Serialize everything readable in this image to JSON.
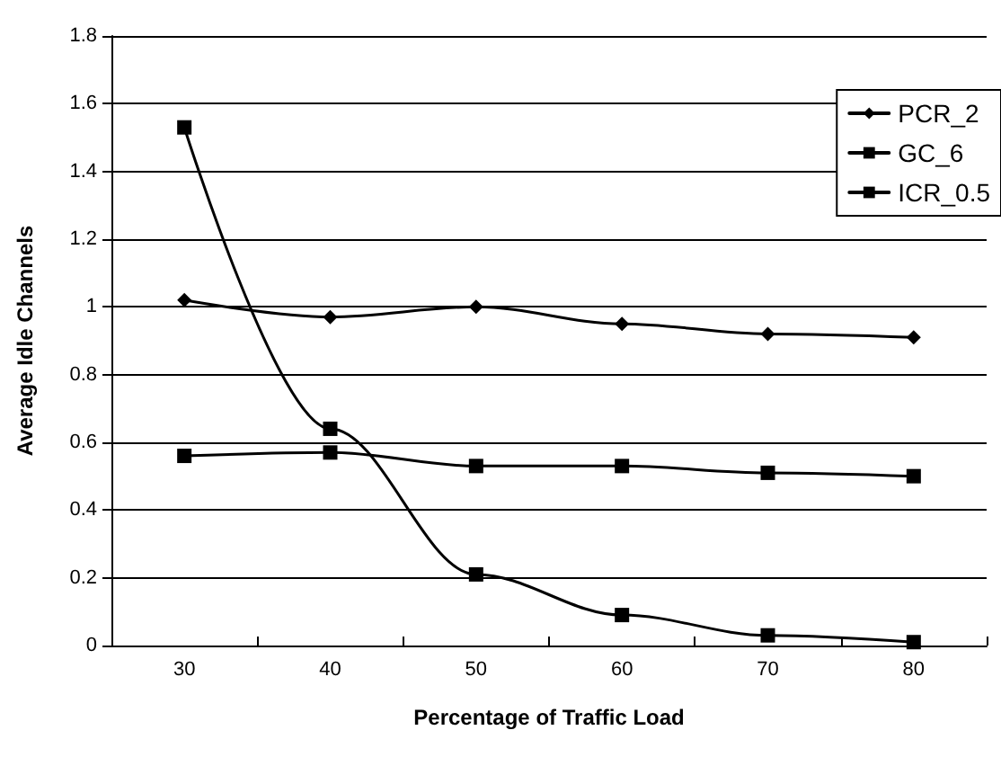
{
  "chart_data": {
    "type": "line",
    "xlabel": "Percentage of Traffic Load",
    "ylabel": "Average Idle Channels",
    "categories": [
      "30",
      "40",
      "50",
      "60",
      "70",
      "80"
    ],
    "series": [
      {
        "name": "PCR_2",
        "color": "#000000",
        "marker": "diamond",
        "values": [
          1.02,
          0.97,
          1.0,
          0.95,
          0.92,
          0.91
        ]
      },
      {
        "name": "GC_6",
        "color": "#000000",
        "marker": "square",
        "values": [
          1.53,
          0.64,
          0.21,
          0.09,
          0.03,
          0.01
        ]
      },
      {
        "name": "ICR_0.5",
        "color": "#000000",
        "marker": "square",
        "values": [
          0.56,
          0.57,
          0.53,
          0.53,
          0.51,
          0.5
        ]
      }
    ],
    "ylim": [
      0,
      1.8
    ],
    "yticks": [
      0,
      0.2,
      0.4,
      0.6,
      0.8,
      1,
      1.2,
      1.4,
      1.6,
      1.8
    ],
    "grid": "y",
    "legend": "top right",
    "line_style": "solid"
  }
}
